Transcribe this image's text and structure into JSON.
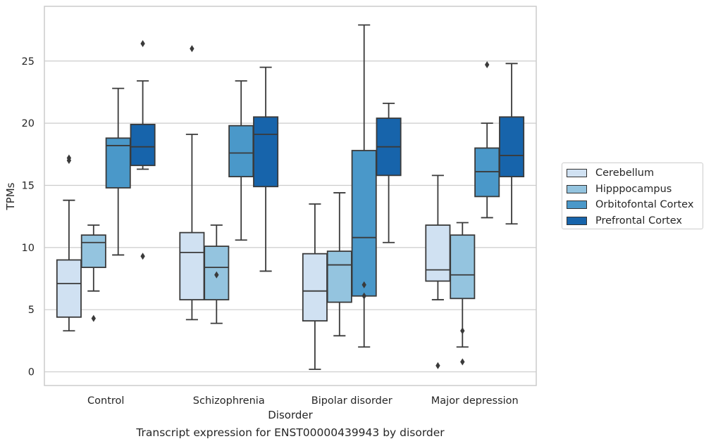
{
  "chart_data": {
    "type": "box",
    "caption": "Transcript expression for ENST00000439943 by disorder",
    "xlabel": "Disorder",
    "ylabel": "TPMs",
    "ylim": [
      -1.1,
      29.4
    ],
    "yticks": [
      0,
      5,
      10,
      15,
      20,
      25
    ],
    "grid": "horizontal",
    "legend_position": "right",
    "categories": [
      "Control",
      "Schizophrenia",
      "Bipolar disorder",
      "Major depression"
    ],
    "series": [
      {
        "name": "Cerebellum",
        "color": "#d0e1f2",
        "boxes": [
          {
            "low": 3.3,
            "q1": 4.4,
            "median": 7.1,
            "q3": 9.0,
            "high": 13.8,
            "outliers": [
              17.0,
              17.2
            ]
          },
          {
            "low": 4.2,
            "q1": 5.8,
            "median": 9.6,
            "q3": 11.2,
            "high": 19.1,
            "outliers": [
              26.0
            ]
          },
          {
            "low": 0.2,
            "q1": 4.1,
            "median": 6.5,
            "q3": 9.5,
            "high": 13.5,
            "outliers": []
          },
          {
            "low": 5.8,
            "q1": 7.3,
            "median": 8.2,
            "q3": 11.8,
            "high": 15.8,
            "outliers": [
              0.5
            ]
          }
        ]
      },
      {
        "name": "Hipppocampus",
        "color": "#94c4df",
        "boxes": [
          {
            "low": 6.5,
            "q1": 8.4,
            "median": 10.4,
            "q3": 11.0,
            "high": 11.8,
            "outliers": [
              4.3
            ]
          },
          {
            "low": 3.9,
            "q1": 5.8,
            "median": 8.4,
            "q3": 10.1,
            "high": 11.8,
            "outliers": [
              7.8
            ]
          },
          {
            "low": 2.9,
            "q1": 5.6,
            "median": 8.6,
            "q3": 9.7,
            "high": 14.4,
            "outliers": []
          },
          {
            "low": 2.0,
            "q1": 5.9,
            "median": 7.8,
            "q3": 11.0,
            "high": 12.0,
            "outliers": [
              3.3,
              0.8
            ]
          }
        ]
      },
      {
        "name": "Orbitofontal Cortex",
        "color": "#4a98c9",
        "boxes": [
          {
            "low": 9.4,
            "q1": 14.8,
            "median": 18.2,
            "q3": 18.8,
            "high": 22.8,
            "outliers": []
          },
          {
            "low": 10.6,
            "q1": 15.7,
            "median": 17.6,
            "q3": 19.8,
            "high": 23.4,
            "outliers": []
          },
          {
            "low": 2.0,
            "q1": 6.1,
            "median": 10.8,
            "q3": 17.8,
            "high": 27.9,
            "outliers": [
              7.0,
              6.1
            ]
          },
          {
            "low": 12.4,
            "q1": 14.1,
            "median": 16.1,
            "q3": 18.0,
            "high": 20.0,
            "outliers": [
              24.7
            ]
          }
        ]
      },
      {
        "name": "Prefrontal Cortex",
        "color": "#1764ab",
        "boxes": [
          {
            "low": 16.3,
            "q1": 16.6,
            "median": 18.1,
            "q3": 19.9,
            "high": 23.4,
            "outliers": [
              26.4,
              9.3
            ]
          },
          {
            "low": 8.1,
            "q1": 14.9,
            "median": 19.1,
            "q3": 20.5,
            "high": 24.5,
            "outliers": []
          },
          {
            "low": 10.4,
            "q1": 15.8,
            "median": 18.1,
            "q3": 20.4,
            "high": 21.6,
            "outliers": []
          },
          {
            "low": 11.9,
            "q1": 15.7,
            "median": 17.4,
            "q3": 20.5,
            "high": 24.8,
            "outliers": []
          }
        ]
      }
    ]
  }
}
